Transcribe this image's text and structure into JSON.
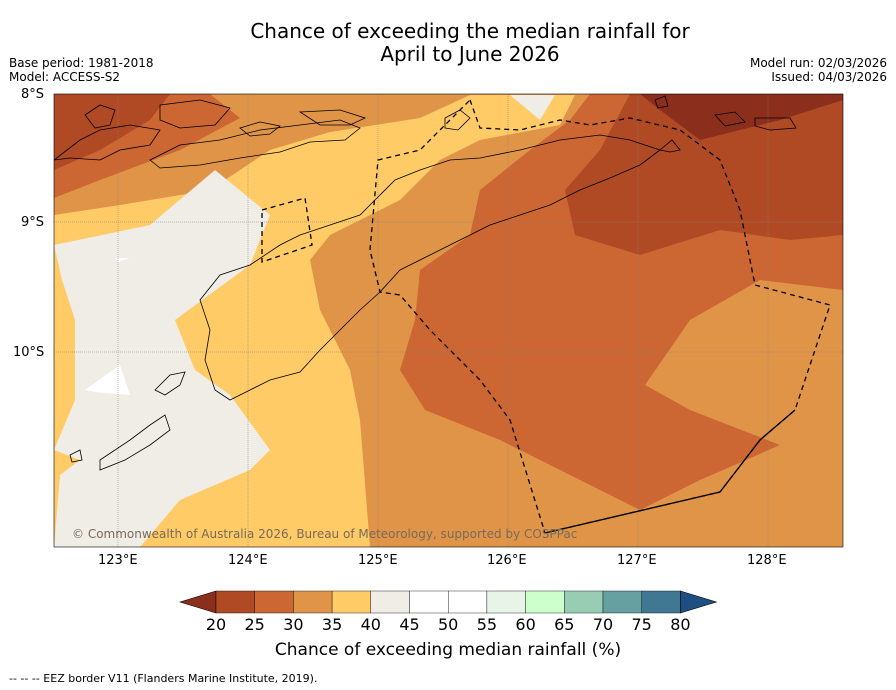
{
  "title": {
    "line1": "Chance of exceeding the median rainfall for",
    "line2": "April to June 2026"
  },
  "meta_left": {
    "base_period": "Base period: 1981-2018",
    "model": "Model: ACCESS-S2"
  },
  "meta_right": {
    "model_run": "Model run: 02/03/2026",
    "issued": "Issued: 04/03/2026"
  },
  "map": {
    "lat_labels": [
      "8°S",
      "9°S",
      "10°S"
    ],
    "lon_labels": [
      "123°E",
      "124°E",
      "125°E",
      "126°E",
      "127°E",
      "128°E"
    ],
    "copyright": "© Commonwealth of Australia 2026, Bureau of Meteorology, supported by COSPPac"
  },
  "colorbar": {
    "ticks": [
      "20",
      "25",
      "30",
      "35",
      "40",
      "45",
      "50",
      "55",
      "60",
      "65",
      "70",
      "75",
      "80"
    ],
    "colors": [
      "#8b2e1c",
      "#b04a25",
      "#cc6633",
      "#e09448",
      "#fecb66",
      "#f0ece6",
      "#ffffff",
      "#ffffff",
      "#e8f4e8",
      "#ccffcc",
      "#99cdb3",
      "#66a0a0",
      "#407894",
      "#1f4f80"
    ],
    "label": "Chance of exceeding median rainfall (%)"
  },
  "footnote": "--  --  -- EEZ border V11 (Flanders Marine Institute, 2019)."
}
